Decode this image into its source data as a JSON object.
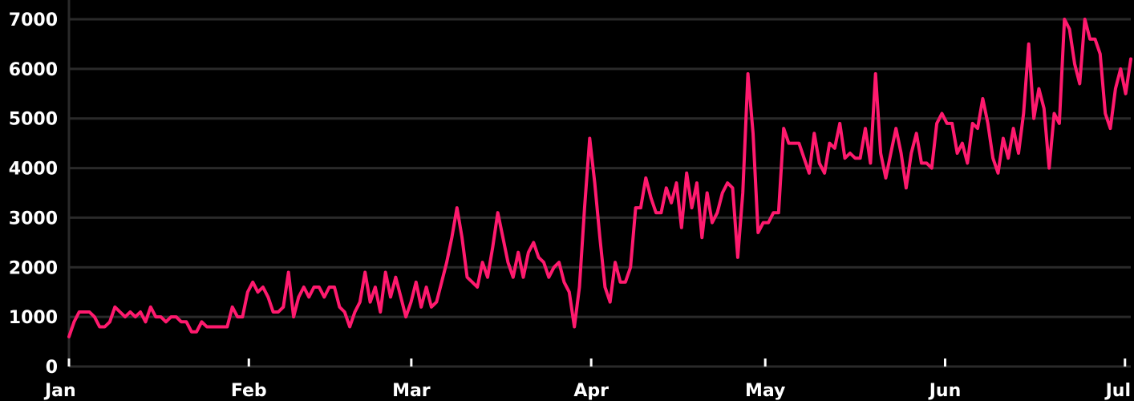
{
  "colors": {
    "background": "#000000",
    "grid": "#2a2a2a",
    "series": "#ff1a6e",
    "text": "#ffffff"
  },
  "chart_data": {
    "type": "line",
    "title": "",
    "xlabel": "",
    "ylabel": "",
    "grid": true,
    "legend": "none",
    "ylim": [
      0,
      7
    ],
    "y_ticks": [
      0,
      1,
      2,
      3,
      4,
      5,
      6,
      7
    ],
    "y_tick_labels": [
      "0",
      "1000",
      "2000",
      "3000",
      "4000",
      "5000",
      "6000",
      "7000"
    ],
    "xlim": [
      0,
      183
    ],
    "x_ticks": [
      0,
      31,
      59,
      90,
      120,
      151,
      182
    ],
    "x_tick_labels": [
      "Jan",
      "Feb",
      "Mar",
      "Apr",
      "May",
      "Jun",
      "Jul"
    ],
    "series": [
      {
        "values": [
          0.6,
          0.9,
          1.1,
          1.1,
          1.1,
          1.0,
          0.8,
          0.8,
          0.9,
          1.2,
          1.1,
          1.0,
          1.1,
          1.0,
          1.1,
          0.9,
          1.2,
          1.0,
          1.0,
          0.9,
          1.0,
          1.0,
          0.9,
          0.9,
          0.7,
          0.7,
          0.9,
          0.8,
          0.8,
          0.8,
          0.8,
          0.8,
          1.2,
          1.0,
          1.0,
          1.5,
          1.7,
          1.5,
          1.6,
          1.4,
          1.1,
          1.1,
          1.2,
          1.9,
          1.0,
          1.4,
          1.6,
          1.4,
          1.6,
          1.6,
          1.4,
          1.6,
          1.6,
          1.2,
          1.1,
          0.8,
          1.1,
          1.3,
          1.9,
          1.3,
          1.6,
          1.1,
          1.9,
          1.4,
          1.8,
          1.4,
          1.0,
          1.3,
          1.7,
          1.2,
          1.6,
          1.2,
          1.3,
          1.7,
          2.1,
          2.6,
          3.2,
          2.6,
          1.8,
          1.7,
          1.6,
          2.1,
          1.8,
          2.4,
          3.1,
          2.6,
          2.1,
          1.8,
          2.3,
          1.8,
          2.3,
          2.5,
          2.2,
          2.1,
          1.8,
          2.0,
          2.1,
          1.7,
          1.5,
          0.8,
          1.6,
          3.2,
          4.6,
          3.7,
          2.6,
          1.6,
          1.3,
          2.1,
          1.7,
          1.7,
          2.0,
          3.2,
          3.2,
          3.8,
          3.4,
          3.1,
          3.1,
          3.6,
          3.3,
          3.7,
          2.8,
          3.9,
          3.2,
          3.7,
          2.6,
          3.5,
          2.9,
          3.1,
          3.5,
          3.7,
          3.6,
          2.2,
          3.5,
          5.9,
          4.7,
          2.7,
          2.9,
          2.9,
          3.1,
          3.1,
          4.8,
          4.5,
          4.5,
          4.5,
          4.2,
          3.9,
          4.7,
          4.1,
          3.9,
          4.5,
          4.4,
          4.9,
          4.2,
          4.3,
          4.2,
          4.2,
          4.8,
          4.1,
          5.9,
          4.3,
          3.8,
          4.3,
          4.8,
          4.3,
          3.6,
          4.3,
          4.7,
          4.1,
          4.1,
          4.0,
          4.9,
          5.1,
          4.9,
          4.9,
          4.3,
          4.5,
          4.1,
          4.9,
          4.8,
          5.4,
          4.9,
          4.2,
          3.9,
          4.6,
          4.2,
          4.8,
          4.3,
          5.1,
          6.5,
          5.0,
          5.6,
          5.2,
          4.0,
          5.1,
          4.9,
          7.0,
          6.8,
          6.1,
          5.7,
          7.0,
          6.6,
          6.6,
          6.3,
          5.1,
          4.8,
          5.6,
          6.0,
          5.5,
          6.2
        ]
      }
    ]
  }
}
